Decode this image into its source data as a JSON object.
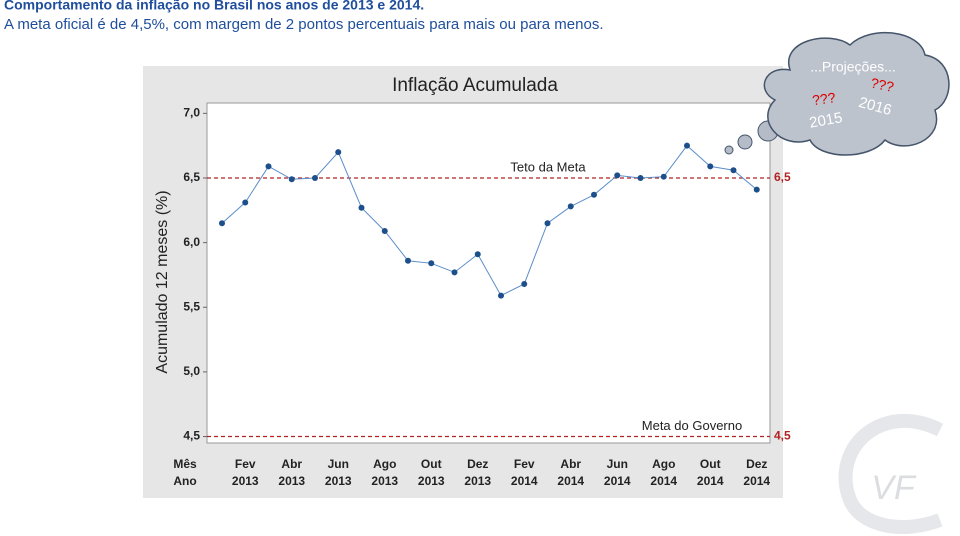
{
  "header": {
    "title": "Comportamento da inflação no Brasil nos anos de 2013 e 2014.",
    "subtitle": "A meta oficial é de 4,5%, com margem de 2 pontos percentuais para mais ou para menos."
  },
  "chart_data": {
    "type": "line",
    "title": "Inflação Acumulada",
    "y_label": "Acumulado 12 meses (%)",
    "x_row_labels": [
      "Mês",
      "Ano"
    ],
    "categories": [
      null,
      "Fev",
      null,
      "Abr",
      null,
      "Jun",
      null,
      "Ago",
      null,
      "Out",
      null,
      "Dez",
      null,
      "Fev",
      null,
      "Abr",
      null,
      "Jun",
      null,
      "Ago",
      null,
      "Out",
      null,
      "Dez"
    ],
    "category_years": [
      null,
      "2013",
      null,
      "2013",
      null,
      "2013",
      null,
      "2013",
      null,
      "2013",
      null,
      "2013",
      null,
      "2014",
      null,
      "2014",
      null,
      "2014",
      null,
      "2014",
      null,
      "2014",
      null,
      "2014"
    ],
    "series": [
      {
        "name": "Inflação Acumulada",
        "color": "#1d4f8a",
        "values": [
          6.15,
          6.31,
          6.59,
          6.49,
          6.5,
          6.7,
          6.27,
          6.09,
          5.86,
          5.84,
          5.77,
          5.91,
          5.59,
          5.68,
          6.15,
          6.28,
          6.37,
          6.52,
          6.5,
          6.51,
          6.75,
          6.59,
          6.56,
          6.41
        ]
      }
    ],
    "ylim": [
      4.45,
      7.08
    ],
    "yticks": [
      {
        "value": 4.5,
        "label": "4,5"
      },
      {
        "value": 5.0,
        "label": "5,0"
      },
      {
        "value": 5.5,
        "label": "5,5"
      },
      {
        "value": 6.0,
        "label": "6,0"
      },
      {
        "value": 6.5,
        "label": "6,5"
      },
      {
        "value": 7.0,
        "label": "7,0"
      }
    ],
    "reference_lines": [
      {
        "value": 6.5,
        "label": "6,5",
        "name": "Teto da Meta"
      },
      {
        "value": 4.5,
        "label": "4,5",
        "name": "Meta do Governo"
      }
    ],
    "reference_color": "#b22222"
  },
  "callout": {
    "title": "...Projeções...",
    "q1": "???",
    "year1": "2015",
    "q2": "???",
    "year2": "2016"
  },
  "logo": "VF"
}
